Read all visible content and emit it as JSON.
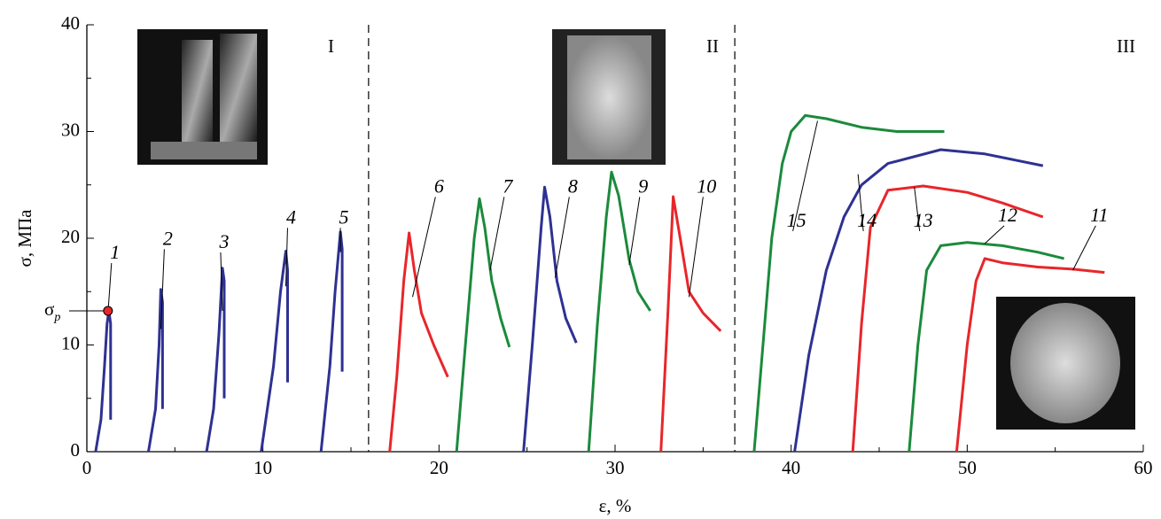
{
  "chart_data": {
    "type": "line",
    "x_label": "ε, %",
    "y_label": "σ, МПа",
    "xlim": [
      0,
      60
    ],
    "ylim": [
      0,
      40
    ],
    "xticks": [
      0,
      10,
      20,
      30,
      40,
      50,
      60
    ],
    "yticks": [
      0,
      10,
      20,
      30,
      40
    ],
    "regions": [
      "I",
      "II",
      "III"
    ],
    "region_boundaries": [
      16,
      36.8
    ],
    "sigma_p": {
      "label": "σ",
      "subscript": "p",
      "x": 1.2,
      "y": 13.2
    },
    "series": [
      {
        "name": "1",
        "color": "#2e3192",
        "x": [
          0.5,
          0.8,
          1.0,
          1.15,
          1.25,
          1.35,
          1.35
        ],
        "values": [
          0,
          3,
          8,
          12,
          13.2,
          12,
          3
        ]
      },
      {
        "name": "2",
        "color": "#2e3192",
        "x": [
          3.5,
          3.9,
          4.1,
          4.2,
          4.3,
          4.3
        ],
        "values": [
          0,
          4,
          10,
          15.2,
          14,
          4
        ]
      },
      {
        "name": "3",
        "color": "#2e3192",
        "x": [
          6.8,
          7.2,
          7.5,
          7.7,
          7.8,
          7.8
        ],
        "values": [
          0,
          4,
          11,
          17.2,
          16,
          5
        ]
      },
      {
        "name": "4",
        "color": "#2e3192",
        "x": [
          9.9,
          10.6,
          11.0,
          11.3,
          11.4,
          11.4
        ],
        "values": [
          0,
          8,
          15,
          18.8,
          17,
          6.5
        ]
      },
      {
        "name": "5",
        "color": "#2e3192",
        "x": [
          13.3,
          13.8,
          14.1,
          14.4,
          14.5,
          14.5
        ],
        "values": [
          0,
          8,
          15,
          20.6,
          19,
          7.5
        ]
      },
      {
        "name": "6",
        "color": "#e8262a",
        "x": [
          17.2,
          17.6,
          18.0,
          18.3,
          18.6,
          19.0,
          19.7,
          20.5
        ],
        "values": [
          0,
          7,
          16,
          20.5,
          17,
          13,
          10,
          7
        ]
      },
      {
        "name": "7",
        "color": "#1b8a3c",
        "x": [
          21.0,
          21.5,
          22.0,
          22.3,
          22.6,
          23.0,
          23.5,
          24.0
        ],
        "values": [
          0,
          10,
          20,
          23.7,
          21,
          16,
          12.5,
          9.8
        ]
      },
      {
        "name": "8",
        "color": "#2e3192",
        "x": [
          24.8,
          25.3,
          25.8,
          26.0,
          26.3,
          26.7,
          27.2,
          27.8
        ],
        "values": [
          0,
          10,
          21,
          24.8,
          22,
          16,
          12.5,
          10.2
        ]
      },
      {
        "name": "9",
        "color": "#1b8a3c",
        "x": [
          28.5,
          29.0,
          29.5,
          29.8,
          30.2,
          30.8,
          31.3,
          32.0
        ],
        "values": [
          0,
          12,
          22,
          26.2,
          24,
          18,
          15,
          13.2
        ]
      },
      {
        "name": "10",
        "color": "#e8262a",
        "x": [
          32.6,
          33.0,
          33.3,
          33.7,
          34.2,
          35.0,
          36.0
        ],
        "values": [
          0,
          13,
          23.9,
          20,
          15,
          13,
          11.3
        ]
      },
      {
        "name": "11",
        "color": "#e8262a",
        "x": [
          49.4,
          50.0,
          50.5,
          51.0,
          52,
          54,
          56,
          57.8
        ],
        "values": [
          0,
          10,
          16,
          18.1,
          17.7,
          17.3,
          17.1,
          16.8
        ]
      },
      {
        "name": "12",
        "color": "#1b8a3c",
        "x": [
          46.7,
          47.2,
          47.7,
          48.5,
          50,
          52,
          54,
          55.5
        ],
        "values": [
          0,
          10,
          17,
          19.3,
          19.6,
          19.3,
          18.7,
          18.1
        ]
      },
      {
        "name": "13",
        "color": "#e8262a",
        "x": [
          43.5,
          44.0,
          44.5,
          45.5,
          47.5,
          50,
          52,
          54.3
        ],
        "values": [
          0,
          12,
          21,
          24.5,
          24.9,
          24.3,
          23.3,
          22
        ]
      },
      {
        "name": "14",
        "color": "#2e3192",
        "x": [
          40.2,
          41.0,
          42,
          43,
          44,
          45.5,
          48.5,
          51,
          54.3
        ],
        "values": [
          0,
          9,
          17,
          22,
          25,
          27,
          28.3,
          27.9,
          26.8
        ]
      },
      {
        "name": "15",
        "color": "#1b8a3c",
        "x": [
          37.9,
          38.4,
          38.9,
          39.5,
          40,
          40.8,
          42,
          44,
          46,
          48.7
        ],
        "values": [
          0,
          10,
          20,
          27,
          30,
          31.5,
          31.2,
          30.4,
          30,
          30
        ]
      }
    ]
  }
}
